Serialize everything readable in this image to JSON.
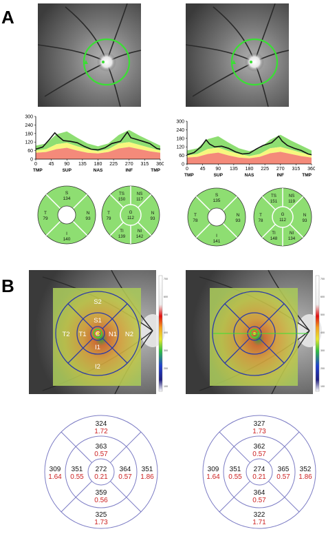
{
  "panel_labels": {
    "a": "A",
    "b": "B"
  },
  "colors": {
    "normal": "#8ede72",
    "borderline": "#f7f77e",
    "abnormal": "#f48a7a",
    "rnfl_line": "#111111",
    "scan_circle": "#39e033",
    "thickness_black": "#111111",
    "volume_red": "#cc1f1f"
  },
  "rnfl_chart": {
    "y_ticks": [
      "300",
      "240",
      "180",
      "120",
      "60",
      "0"
    ],
    "x_ticks": [
      "0",
      "45",
      "90",
      "135",
      "180",
      "225",
      "270",
      "315",
      "360"
    ],
    "x_regions": [
      "TMP",
      "SUP",
      "NAS",
      "INF",
      "TMP"
    ]
  },
  "chart_data": [
    {
      "type": "line",
      "xlabel": "",
      "ylabel": "",
      "xlim": [
        0,
        360
      ],
      "ylim": [
        0,
        300
      ],
      "x": [
        0,
        20,
        40,
        55,
        65,
        80,
        100,
        120,
        140,
        160,
        180,
        200,
        220,
        245,
        265,
        275,
        290,
        310,
        330,
        350,
        360
      ],
      "series": [
        {
          "values": [
            70,
            85,
            140,
            185,
            160,
            130,
            125,
            115,
            90,
            70,
            65,
            80,
            110,
            125,
            190,
            150,
            140,
            125,
            110,
            75,
            70
          ]
        }
      ]
    },
    {
      "type": "line",
      "xlabel": "",
      "ylabel": "",
      "xlim": [
        0,
        360
      ],
      "ylim": [
        0,
        300
      ],
      "x": [
        0,
        20,
        40,
        55,
        65,
        80,
        100,
        120,
        140,
        160,
        180,
        200,
        220,
        245,
        265,
        275,
        290,
        310,
        330,
        350,
        360
      ],
      "series": [
        {
          "values": [
            65,
            80,
            120,
            170,
            140,
            120,
            125,
            110,
            85,
            70,
            75,
            105,
            130,
            150,
            195,
            160,
            130,
            110,
            95,
            70,
            65
          ]
        }
      ]
    }
  ],
  "sector_charts": [
    {
      "quadrant": {
        "S": "S",
        "S_val": "134",
        "T": "T",
        "T_val": "79",
        "N": "N",
        "N_val": "93",
        "I": "I",
        "I_val": "140"
      },
      "clock": {
        "TS": "TS",
        "TS_val": "150",
        "NS": "NS",
        "NS_val": "117",
        "T": "T",
        "T_val": "79",
        "G": "G",
        "G_val": "112",
        "N": "N",
        "N_val": "93",
        "TI": "TI",
        "TI_val": "139",
        "NI": "NI",
        "NI_val": "142"
      }
    },
    {
      "quadrant": {
        "S": "S",
        "S_val": "135",
        "T": "T",
        "T_val": "78",
        "N": "N",
        "N_val": "93",
        "I": "I",
        "I_val": "141"
      },
      "clock": {
        "TS": "TS",
        "TS_val": "151",
        "NS": "NS",
        "NS_val": "119",
        "T": "T",
        "T_val": "78",
        "G": "G",
        "G_val": "112",
        "N": "N",
        "N_val": "93",
        "TI": "TI",
        "TI_val": "148",
        "NI": "NI",
        "NI_val": "134"
      }
    }
  ],
  "etdrs_labels": {
    "C": "C",
    "S1": "S1",
    "S2": "S2",
    "T1": "T1",
    "T2": "T2",
    "N1": "N1",
    "N2": "N2",
    "I1": "I1",
    "I2": "I2"
  },
  "colorbar_ticks": [
    "700",
    "600",
    "500",
    "400",
    "300",
    "200",
    "100"
  ],
  "macular_grids": [
    {
      "S2": {
        "t": "324",
        "v": "1.72"
      },
      "S1": {
        "t": "363",
        "v": "0.57"
      },
      "T2": {
        "t": "309",
        "v": "1.64"
      },
      "T1": {
        "t": "351",
        "v": "0.55"
      },
      "C": {
        "t": "272",
        "v": "0.21"
      },
      "N1": {
        "t": "364",
        "v": "0.57"
      },
      "N2": {
        "t": "351",
        "v": "1.86"
      },
      "I1": {
        "t": "359",
        "v": "0.56"
      },
      "I2": {
        "t": "325",
        "v": "1.73"
      }
    },
    {
      "S2": {
        "t": "327",
        "v": "1.73"
      },
      "S1": {
        "t": "362",
        "v": "0.57"
      },
      "T2": {
        "t": "309",
        "v": "1.64"
      },
      "T1": {
        "t": "351",
        "v": "0.55"
      },
      "C": {
        "t": "274",
        "v": "0.21"
      },
      "N1": {
        "t": "365",
        "v": "0.57"
      },
      "N2": {
        "t": "352",
        "v": "1.86"
      },
      "I1": {
        "t": "364",
        "v": "0.57"
      },
      "I2": {
        "t": "322",
        "v": "1.71"
      }
    }
  ]
}
